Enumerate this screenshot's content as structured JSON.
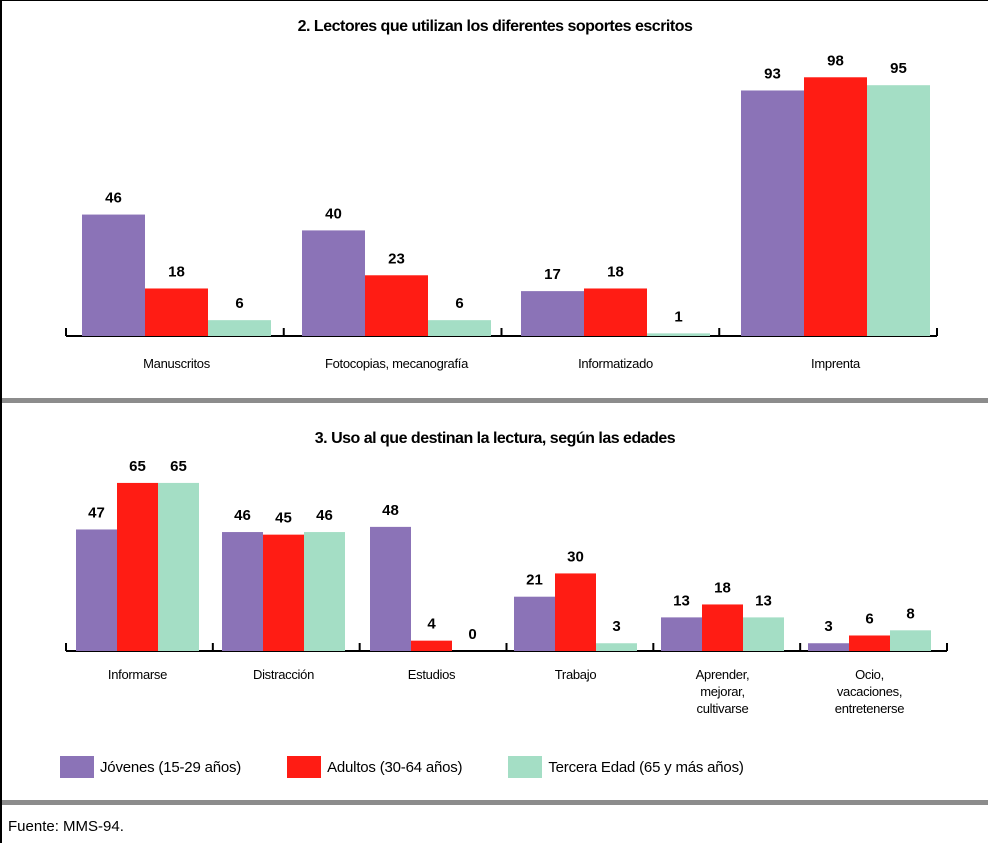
{
  "colors": {
    "jovenes": "#8b73b7",
    "adultos": "#ff1c14",
    "tercera": "#a4dec5",
    "separator": "#8c8c8c"
  },
  "legend": [
    {
      "key": "jovenes",
      "label": "Jóvenes (15-29 años)"
    },
    {
      "key": "adultos",
      "label": "Adultos (30-64 años)"
    },
    {
      "key": "tercera",
      "label": "Tercera Edad (65 y más años)"
    }
  ],
  "source": "Fuente: MMS-94.",
  "chart_data": [
    {
      "type": "bar",
      "title": "2. Lectores que utilizan los diferentes soportes escritos",
      "categories": [
        [
          "Manuscritos"
        ],
        [
          "Fotocopias, mecanografía"
        ],
        [
          "Informatizado"
        ],
        [
          "Imprenta"
        ]
      ],
      "series": [
        {
          "name": "Jóvenes (15-29 años)",
          "values": [
            46,
            40,
            17,
            93
          ]
        },
        {
          "name": "Adultos (30-64 años)",
          "values": [
            18,
            23,
            18,
            98
          ]
        },
        {
          "name": "Tercera Edad (65 y más años)",
          "values": [
            6,
            6,
            1,
            95
          ]
        }
      ],
      "value_labels": [
        [
          "46",
          "18",
          "6"
        ],
        [
          "40",
          "23",
          "6"
        ],
        [
          "17",
          "18",
          "1"
        ],
        [
          "93",
          "98",
          "95"
        ]
      ],
      "ylim": [
        0,
        100
      ],
      "xlabel": "",
      "ylabel": "",
      "grid": false,
      "legend": "bottom"
    },
    {
      "type": "bar",
      "title": "3. Uso al que destinan la lectura, según las edades",
      "categories": [
        [
          "Informarse"
        ],
        [
          "Distracción"
        ],
        [
          "Estudios"
        ],
        [
          "Trabajo"
        ],
        [
          "Aprender,",
          "mejorar,",
          "cultivarse"
        ],
        [
          "Ocio,",
          "vacaciones,",
          "entretenerse"
        ]
      ],
      "series": [
        {
          "name": "Jóvenes (15-29 años)",
          "values": [
            47,
            46,
            48,
            21,
            13,
            3
          ]
        },
        {
          "name": "Adultos (30-64 años)",
          "values": [
            65,
            45,
            4,
            30,
            18,
            6
          ]
        },
        {
          "name": "Tercera Edad (65 y más años)",
          "values": [
            65,
            46,
            0,
            3,
            13,
            8
          ]
        }
      ],
      "value_labels": [
        [
          "47",
          "65",
          "65"
        ],
        [
          "46",
          "45",
          "46"
        ],
        [
          "48",
          "4",
          "0"
        ],
        [
          "21",
          "30",
          "3"
        ],
        [
          "13",
          "18",
          "13"
        ],
        [
          "3",
          "6",
          "8"
        ]
      ],
      "ylim": [
        0,
        70
      ],
      "xlabel": "",
      "ylabel": "",
      "grid": false,
      "legend": "bottom"
    }
  ]
}
